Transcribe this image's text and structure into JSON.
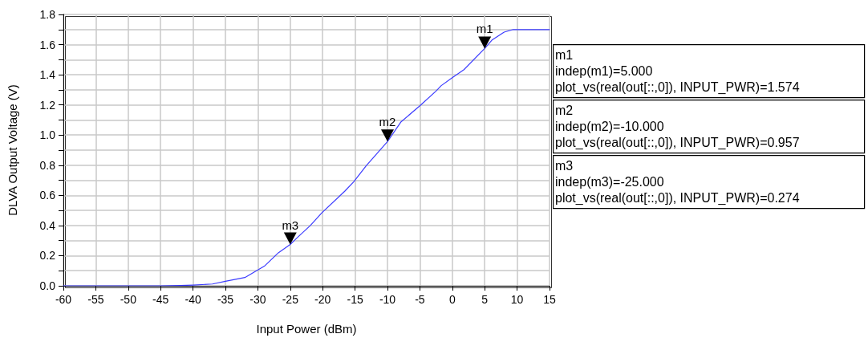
{
  "chart_data": {
    "type": "line",
    "xlabel": "Input Power (dBm)",
    "ylabel": "DLVA Output Voltage (V)",
    "x": [
      -60,
      -50,
      -45,
      -42,
      -40,
      -37,
      -35,
      -32,
      -29,
      -26.8,
      -25,
      -24,
      -21.9,
      -20.1,
      -16.6,
      -15.2,
      -13.3,
      -10,
      -7.9,
      -5,
      -2.5,
      -1.7,
      0,
      1.8,
      5,
      6.1,
      8,
      9.4,
      12,
      15
    ],
    "series": [
      {
        "color": "#3c3cff",
        "values": [
          0,
          0,
          0,
          0.002,
          0.005,
          0.012,
          0.03,
          0.055,
          0.13,
          0.22,
          0.274,
          0.316,
          0.4,
          0.485,
          0.627,
          0.69,
          0.795,
          0.957,
          1.088,
          1.194,
          1.292,
          1.328,
          1.381,
          1.434,
          1.574,
          1.629,
          1.683,
          1.7,
          1.7,
          1.7
        ]
      }
    ],
    "xlim": [
      -60,
      15
    ],
    "xticks": [
      -60,
      -55,
      -50,
      -45,
      -40,
      -35,
      -30,
      -25,
      -20,
      -15,
      -10,
      -5,
      0,
      5,
      10,
      15
    ],
    "ylim": [
      0,
      1.8
    ],
    "yticks": [
      {
        "value": 0,
        "label": "0.0"
      },
      {
        "value": 0.1,
        "label": null
      },
      {
        "value": 0.2,
        "label": "0.2"
      },
      {
        "value": 0.3,
        "label": null
      },
      {
        "value": 0.4,
        "label": "0.4"
      },
      {
        "value": 0.5,
        "label": null
      },
      {
        "value": 0.6,
        "label": "0.6"
      },
      {
        "value": 0.7,
        "label": null
      },
      {
        "value": 0.8,
        "label": "0.8"
      },
      {
        "value": 0.9,
        "label": null
      },
      {
        "value": 1.0,
        "label": "1.0"
      },
      {
        "value": 1.1,
        "label": null
      },
      {
        "value": 1.2,
        "label": "1.2"
      },
      {
        "value": 1.3,
        "label": null
      },
      {
        "value": 1.4,
        "label": "1.4"
      },
      {
        "value": 1.5,
        "label": null
      },
      {
        "value": 1.6,
        "label": "1.6"
      },
      {
        "value": 1.7,
        "label": null
      },
      {
        "value": 1.8,
        "label": "1.8"
      }
    ],
    "grid": true,
    "marker": "none",
    "line_style": "solid",
    "annotations": [
      {
        "text": "m1",
        "x": 5,
        "y": 1.574
      },
      {
        "text": "m2",
        "x": -10,
        "y": 0.957
      },
      {
        "text": "m3",
        "x": -25,
        "y": 0.274
      },
      "m1\nindep(m1)=5.000\nplot_vs(real(out[::,0]), INPUT_PWR)=1.574",
      "m2\nindep(m2)=-10.000\nplot_vs(real(out[::,0]), INPUT_PWR)=0.957",
      "m3\nindep(m3)=-25.000\nplot_vs(real(out[::,0]), INPUT_PWR)=0.274"
    ]
  }
}
